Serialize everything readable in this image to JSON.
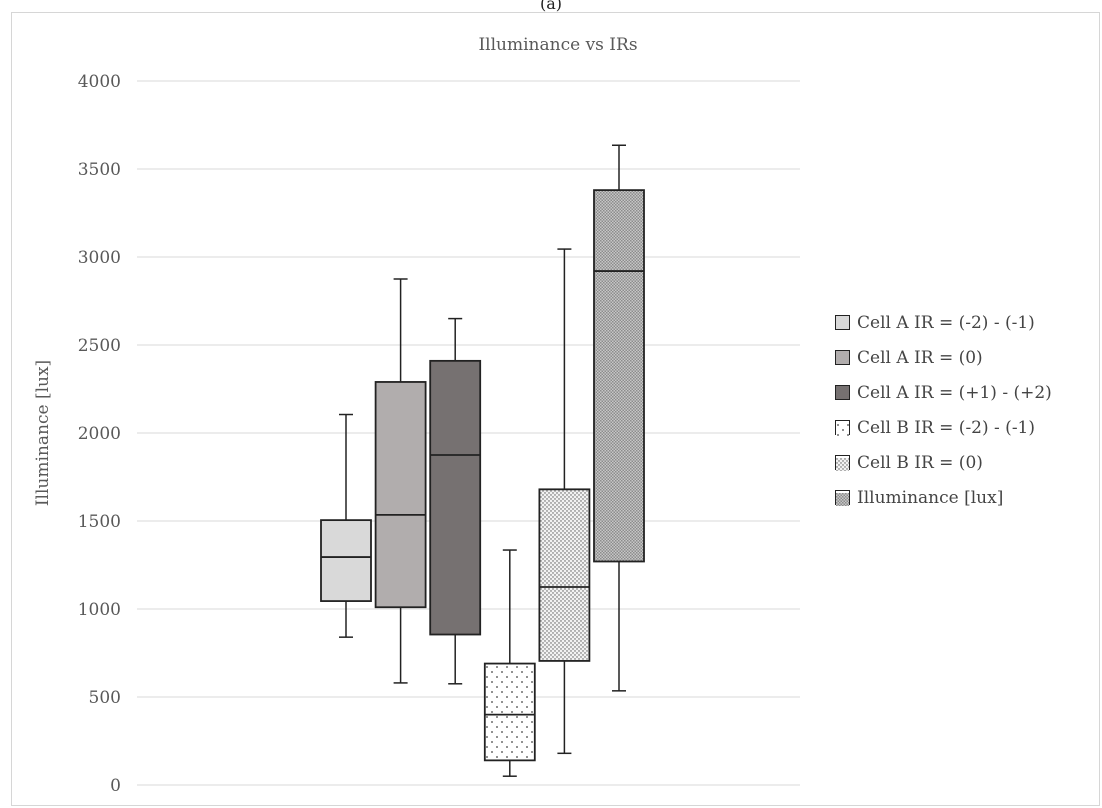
{
  "figure": {
    "panel_label": "(a)"
  },
  "chart_data": {
    "type": "boxplot",
    "title": "Illuminance vs IRs",
    "xlabel": "",
    "ylabel": "Illuminance [lux]",
    "ylim": [
      0,
      4000
    ],
    "yticks": [
      0,
      500,
      1000,
      1500,
      2000,
      2500,
      3000,
      3500,
      4000
    ],
    "grid": true,
    "legend_position": "right",
    "series": [
      {
        "name": "Cell A IR = (-2) - (-1)",
        "min": 840,
        "q1": 1045,
        "median": 1295,
        "q3": 1505,
        "max": 2105,
        "fill": "#d9d9d9",
        "pattern": "solid"
      },
      {
        "name": "Cell A IR = (0)",
        "min": 580,
        "q1": 1010,
        "median": 1535,
        "q3": 2290,
        "max": 2875,
        "fill": "#b1adad",
        "pattern": "solid"
      },
      {
        "name": "Cell A IR = (+1) - (+2)",
        "min": 575,
        "q1": 855,
        "median": 1875,
        "q3": 2410,
        "max": 2650,
        "fill": "#767171",
        "pattern": "solid"
      },
      {
        "name": "Cell B IR = (-2) - (-1)",
        "min": 50,
        "q1": 140,
        "median": 400,
        "q3": 690,
        "max": 1335,
        "fill": "#ffffff",
        "pattern": "sparse-dots"
      },
      {
        "name": "Cell B IR = (0)",
        "min": 180,
        "q1": 705,
        "median": 1125,
        "q3": 1680,
        "max": 3045,
        "fill": "#ededed",
        "pattern": "dense-dots"
      },
      {
        "name": "Illuminance [lux]",
        "min": 535,
        "q1": 1270,
        "median": 2920,
        "q3": 3380,
        "max": 3635,
        "fill": "#bcbcbc",
        "pattern": "fine-hatch"
      }
    ]
  }
}
